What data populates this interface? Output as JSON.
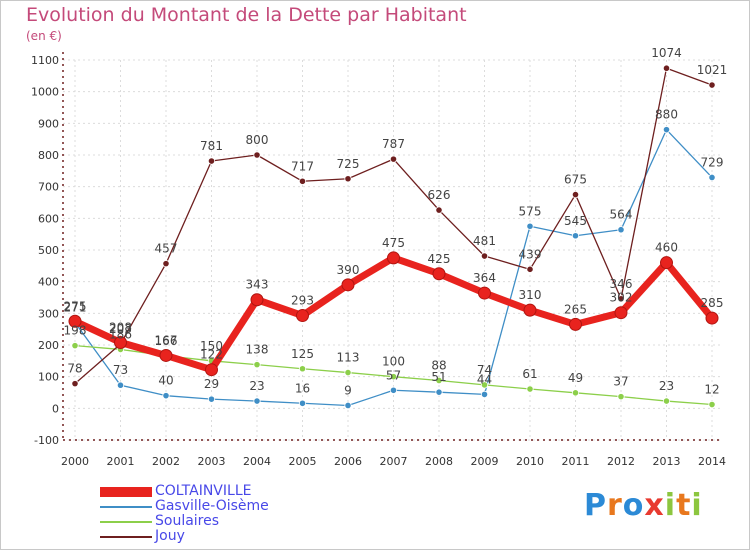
{
  "title": "Evolution du Montant de la Dette par Habitant",
  "unit": "(en €)",
  "logo": {
    "text": "Proxiti",
    "letters": [
      "P",
      "r",
      "o",
      "x",
      "i",
      "t",
      "i"
    ],
    "colors": [
      "#2c8ad6",
      "#e8781e",
      "#2c8ad6",
      "#e83a30",
      "#8cc63f",
      "#e8781e",
      "#8cc63f"
    ]
  },
  "chart_data": {
    "type": "line",
    "x": [
      "2000",
      "2001",
      "2002",
      "2003",
      "2004",
      "2005",
      "2006",
      "2007",
      "2008",
      "2009",
      "2010",
      "2011",
      "2012",
      "2013",
      "2014"
    ],
    "ylim": [
      -100,
      1100
    ],
    "yticks": [
      -100,
      0,
      100,
      200,
      300,
      400,
      500,
      600,
      700,
      800,
      900,
      1000,
      1100
    ],
    "grid": true,
    "legend_position": "bottom-left",
    "series": [
      {
        "name": "COLTAINVILLE",
        "color": "#e8231e",
        "style": "thick",
        "values": [
          275,
          208,
          167,
          122,
          343,
          293,
          390,
          475,
          425,
          364,
          310,
          265,
          302,
          460,
          285
        ],
        "labels": [
          "275",
          "208",
          "167",
          "122",
          "343",
          "293",
          "390",
          "475",
          "425",
          "364",
          "310",
          "265",
          "302",
          "460",
          "285"
        ]
      },
      {
        "name": "Gasville-Oisème",
        "color": "#3f8ec6",
        "style": "thin",
        "values": [
          271,
          73,
          40,
          29,
          23,
          16,
          9,
          57,
          51,
          44,
          575,
          545,
          564,
          880,
          729
        ],
        "labels": [
          "271",
          "73",
          "40",
          "29",
          "23",
          "16",
          "9",
          "57",
          "51",
          "44",
          "575",
          "545",
          "564",
          "880",
          "729"
        ]
      },
      {
        "name": "Soulaires",
        "color": "#8ccf4a",
        "style": "thin",
        "values": [
          198,
          186,
          166,
          150,
          138,
          125,
          113,
          100,
          88,
          74,
          61,
          49,
          37,
          23,
          12
        ],
        "labels": [
          "198",
          "186",
          "166",
          "150",
          "138",
          "125",
          "113",
          "100",
          "88",
          "74",
          "61",
          "49",
          "37",
          "23",
          "12"
        ]
      },
      {
        "name": "Jouy",
        "color": "#6e1f1f",
        "style": "thin",
        "values": [
          78,
          203,
          457,
          781,
          800,
          717,
          725,
          787,
          626,
          481,
          439,
          675,
          346,
          1074,
          1021
        ],
        "labels": [
          "78",
          "203",
          "457",
          "781",
          "800",
          "717",
          "725",
          "787",
          "626",
          "481",
          "439",
          "675",
          "346",
          "1074",
          "1021"
        ]
      }
    ]
  }
}
